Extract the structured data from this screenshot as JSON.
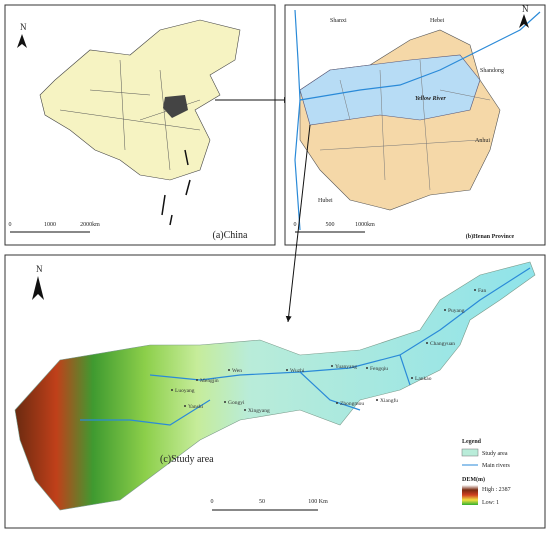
{
  "panel_a": {
    "north": "N",
    "scale": [
      "0",
      "1000",
      "2000km"
    ],
    "caption": "(a)China"
  },
  "panel_b": {
    "north": "N",
    "labels": [
      "Shanxi",
      "Hebei",
      "Shandong",
      "Yellow River",
      "Anhui",
      "Hubei"
    ],
    "scale": [
      "0",
      "500",
      "1000km"
    ],
    "caption": "(b)Henan Province"
  },
  "panel_c": {
    "north": "N",
    "places": [
      "Fan",
      "Puyang",
      "Changyuan",
      "Fengqiu",
      "Yuanyang",
      "Wuzhi",
      "Wen",
      "Mengjin",
      "Luoyang",
      "Yanshi",
      "Gongyi",
      "Xingyang",
      "Zhongmou",
      "Xiangfu",
      "Lankao"
    ],
    "caption": "(c)Study area",
    "scale": [
      "0",
      "50",
      "100 Km"
    ],
    "legend": {
      "title": "Legend",
      "items": [
        "Study area",
        "Main rivers"
      ],
      "dem_title": "DEM(m)",
      "high": "High : 2387",
      "low": "Low: 1"
    }
  }
}
